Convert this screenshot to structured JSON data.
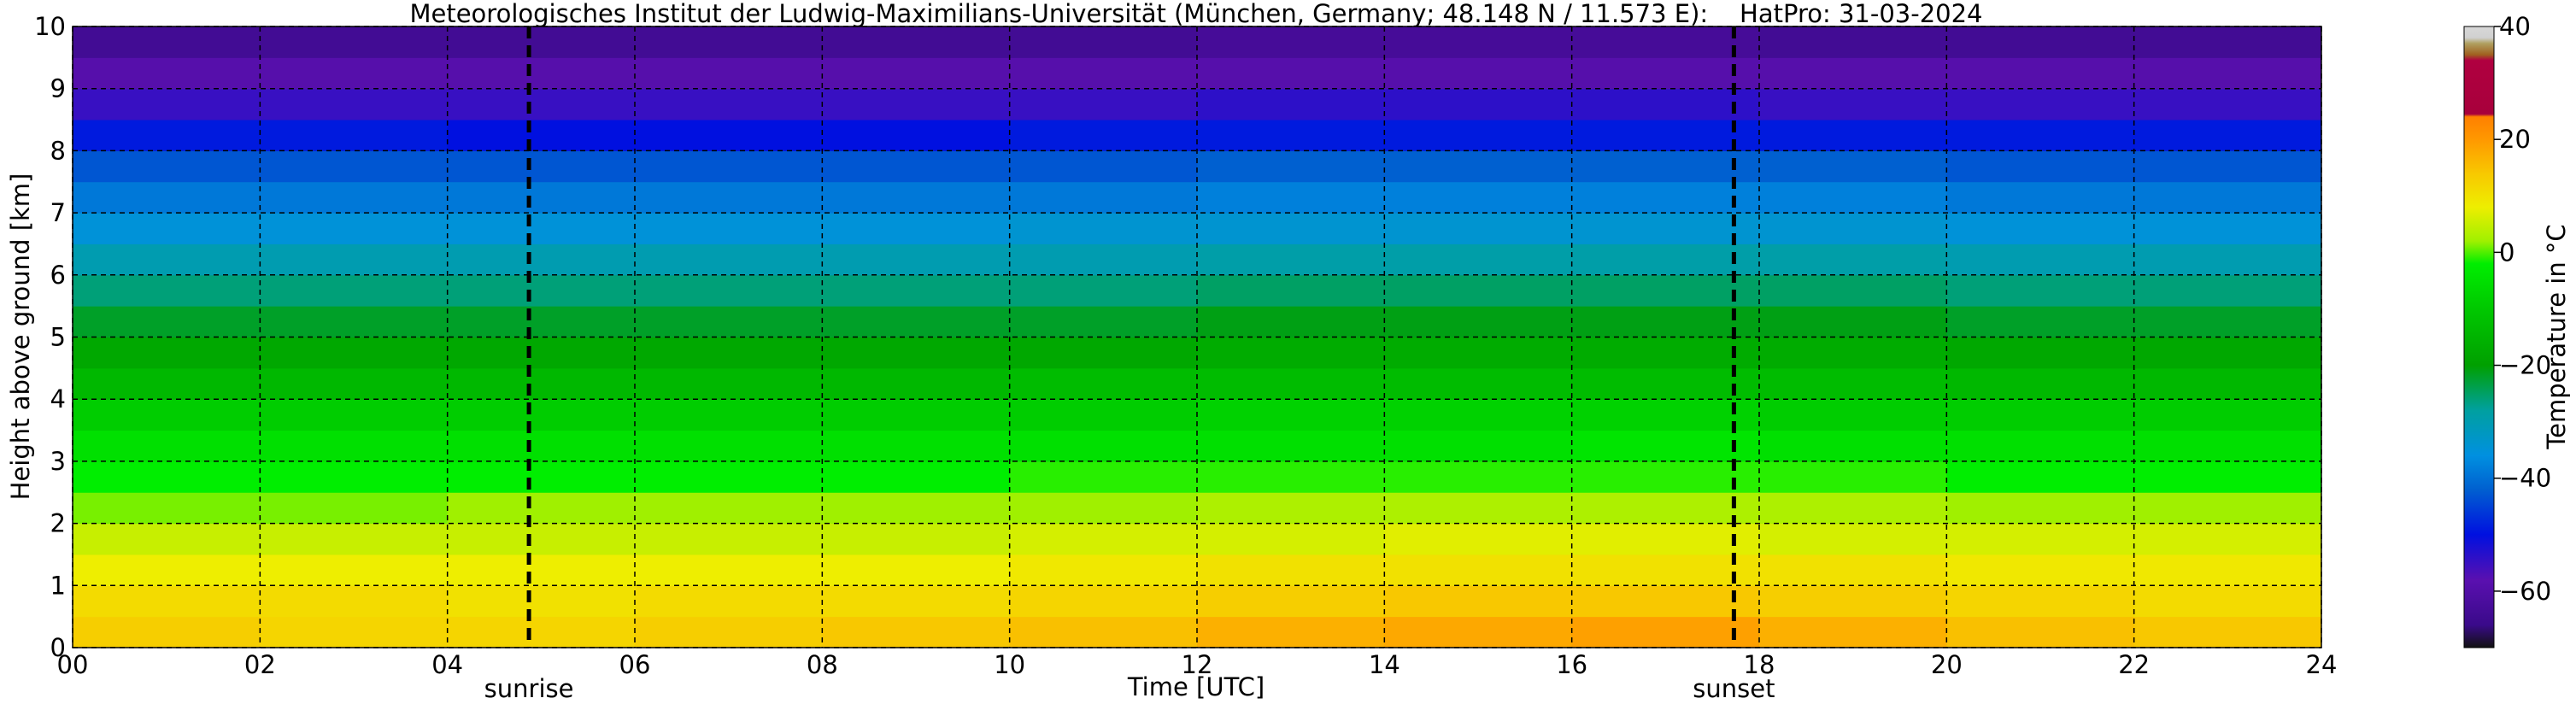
{
  "chart_data": {
    "type": "heatmap",
    "title": "Meteorologisches Institut der Ludwig-Maximilians-Universität (München, Germany; 48.148 N / 11.573 E):    HatPro: 31-03-2024",
    "x_label": "Time [UTC]",
    "y_label": "Height above ground [km]",
    "colorbar_label": "Temperature in °C",
    "x_bins": [
      0,
      2,
      4,
      6,
      8,
      10,
      12,
      14,
      16,
      18,
      20,
      22,
      24
    ],
    "y_bins": [
      0,
      0.5,
      1,
      1.5,
      2,
      2.5,
      3,
      3.5,
      4,
      4.5,
      5,
      5.5,
      6,
      6.5,
      7,
      7.5,
      8,
      8.5,
      9,
      9.5,
      10
    ],
    "z": [
      [
        13,
        12,
        12,
        13,
        14,
        15,
        17,
        18,
        19,
        17,
        15,
        14
      ],
      [
        11,
        11,
        10,
        11,
        11,
        12,
        13,
        14,
        14,
        13,
        12,
        11
      ],
      [
        8,
        8,
        8,
        8,
        8,
        9,
        10,
        10,
        10,
        10,
        9,
        9
      ],
      [
        5,
        5,
        5,
        5,
        5,
        6,
        6,
        7,
        7,
        6,
        6,
        6
      ],
      [
        1,
        1,
        2,
        2,
        2,
        2,
        3,
        3,
        3,
        3,
        2,
        2
      ],
      [
        -2,
        -2,
        -2,
        -2,
        -2,
        -1,
        -1,
        -1,
        -1,
        -1,
        -2,
        -2
      ],
      [
        -5,
        -5,
        -5,
        -5,
        -5,
        -5,
        -5,
        -5,
        -4,
        -5,
        -5,
        -5
      ],
      [
        -9,
        -9,
        -9,
        -9,
        -9,
        -9,
        -8,
        -8,
        -8,
        -9,
        -9,
        -9
      ],
      [
        -14,
        -14,
        -14,
        -14,
        -14,
        -13,
        -13,
        -13,
        -13,
        -13,
        -14,
        -14
      ],
      [
        -18,
        -18,
        -18,
        -18,
        -18,
        -18,
        -17,
        -17,
        -17,
        -17,
        -18,
        -18
      ],
      [
        -22,
        -22,
        -22,
        -22,
        -22,
        -22,
        -21,
        -21,
        -21,
        -21,
        -22,
        -22
      ],
      [
        -26,
        -26,
        -26,
        -26,
        -26,
        -26,
        -25,
        -25,
        -25,
        -25,
        -26,
        -26
      ],
      [
        -30,
        -30,
        -30,
        -30,
        -30,
        -30,
        -29,
        -29,
        -29,
        -29,
        -30,
        -30
      ],
      [
        -35,
        -35,
        -35,
        -35,
        -35,
        -34,
        -34,
        -34,
        -34,
        -34,
        -35,
        -35
      ],
      [
        -39,
        -39,
        -39,
        -39,
        -39,
        -39,
        -38,
        -38,
        -38,
        -38,
        -39,
        -39
      ],
      [
        -43,
        -43,
        -43,
        -43,
        -43,
        -43,
        -42,
        -42,
        -42,
        -42,
        -43,
        -43
      ],
      [
        -49,
        -49,
        -50,
        -50,
        -50,
        -49,
        -49,
        -49,
        -49,
        -49,
        -49,
        -49
      ],
      [
        -55,
        -55,
        -55,
        -55,
        -55,
        -55,
        -54,
        -54,
        -54,
        -55,
        -55,
        -55
      ],
      [
        -59,
        -59,
        -59,
        -59,
        -59,
        -59,
        -59,
        -59,
        -59,
        -59,
        -59,
        -59
      ],
      [
        -64,
        -64,
        -64,
        -64,
        -64,
        -64,
        -63,
        -63,
        -63,
        -64,
        -64,
        -64
      ]
    ],
    "xlim": [
      0,
      24
    ],
    "ylim": [
      0,
      10
    ],
    "xticks": [
      {
        "value": 0,
        "label": "00"
      },
      {
        "value": 2,
        "label": "02"
      },
      {
        "value": 4,
        "label": "04"
      },
      {
        "value": 6,
        "label": "06"
      },
      {
        "value": 8,
        "label": "08"
      },
      10,
      12,
      14,
      16,
      18,
      20,
      22,
      24
    ],
    "yticks": [
      0,
      1,
      2,
      3,
      4,
      5,
      6,
      7,
      8,
      9,
      10
    ],
    "grid": true,
    "clim": [
      -70,
      40
    ],
    "cticks": [
      {
        "value": -60,
        "label": "−60"
      },
      {
        "value": -40,
        "label": "−40"
      },
      {
        "value": -20,
        "label": "−20"
      },
      0,
      20,
      40
    ],
    "colorscale": [
      {
        "value": -70,
        "color": "#111111"
      },
      {
        "value": -66,
        "color": "#3a0a8a"
      },
      {
        "value": -58,
        "color": "#5a10b0"
      },
      {
        "value": -50,
        "color": "#0010e0"
      },
      {
        "value": -42,
        "color": "#0060d0"
      },
      {
        "value": -36,
        "color": "#0090e0"
      },
      {
        "value": -28,
        "color": "#00a0a0"
      },
      {
        "value": -20,
        "color": "#00a000"
      },
      {
        "value": -10,
        "color": "#00c800"
      },
      {
        "value": -2,
        "color": "#00ee00"
      },
      {
        "value": 2,
        "color": "#a0f000"
      },
      {
        "value": 8,
        "color": "#eeee00"
      },
      {
        "value": 14,
        "color": "#f8c800"
      },
      {
        "value": 20,
        "color": "#ff9800"
      },
      {
        "value": 24,
        "color": "#ff8000"
      },
      {
        "value": 24.5,
        "color": "#a8003c"
      },
      {
        "value": 34,
        "color": "#b00040"
      },
      {
        "value": 35,
        "color": "#a06020"
      },
      {
        "value": 37,
        "color": "#b0a060"
      },
      {
        "value": 38,
        "color": "#d0d0d0"
      },
      {
        "value": 40,
        "color": "#d8d8d8"
      }
    ],
    "annotations": [
      {
        "x": 4.87,
        "label": "sunrise"
      },
      {
        "x": 17.73,
        "label": "sunset"
      }
    ]
  }
}
